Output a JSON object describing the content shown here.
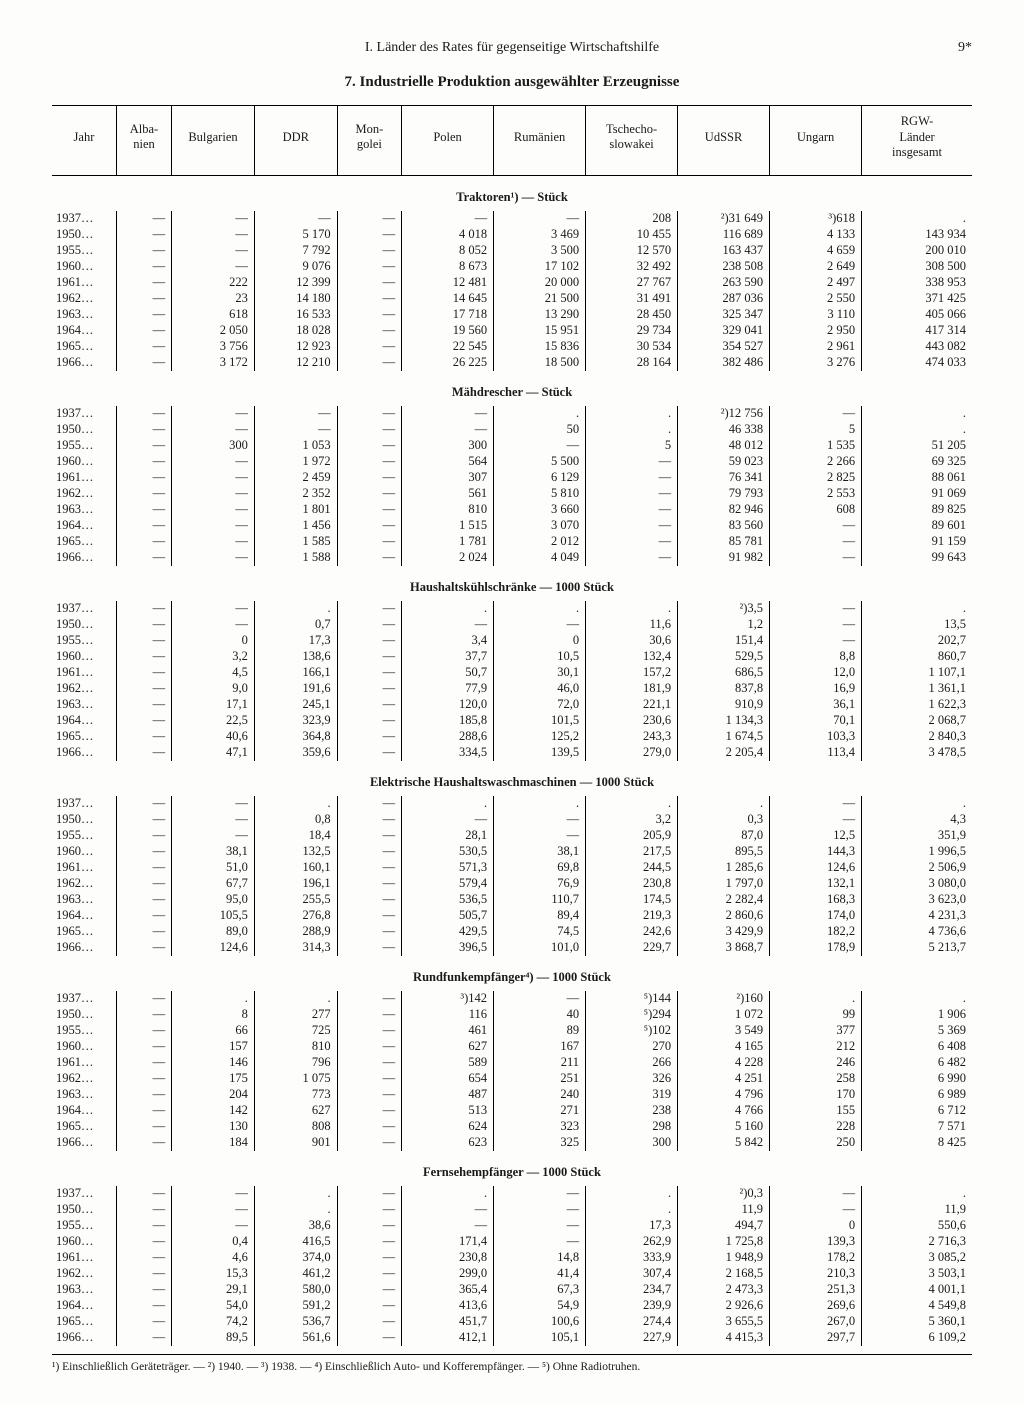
{
  "chapter": "I. Länder des Rates für gegenseitige Wirtschaftshilfe",
  "page_number": "9*",
  "title": "7. Industrielle Produktion ausgewählter Erzeugnisse",
  "columns": [
    "Jahr",
    "Alba-\nnien",
    "Bulgarien",
    "DDR",
    "Mon-\ngolei",
    "Polen",
    "Rumänien",
    "Tschecho-\nslowakei",
    "UdSSR",
    "Ungarn",
    "RGW-\nLänder\ninsgesamt"
  ],
  "years": [
    "1937…",
    "1950…",
    "1955…",
    "1960…",
    "1961…",
    "1962…",
    "1963…",
    "1964…",
    "1965…",
    "1966…"
  ],
  "sections": [
    {
      "title": "Traktoren¹) — Stück",
      "rows": [
        [
          "—",
          "—",
          "—",
          "—",
          "—",
          "—",
          "208",
          "²)31 649",
          "³)618",
          "."
        ],
        [
          "—",
          "—",
          "5 170",
          "—",
          "4 018",
          "3 469",
          "10 455",
          "116 689",
          "4 133",
          "143 934"
        ],
        [
          "—",
          "—",
          "7 792",
          "—",
          "8 052",
          "3 500",
          "12 570",
          "163 437",
          "4 659",
          "200 010"
        ],
        [
          "—",
          "—",
          "9 076",
          "—",
          "8 673",
          "17 102",
          "32 492",
          "238 508",
          "2 649",
          "308 500"
        ],
        [
          "—",
          "222",
          "12 399",
          "—",
          "12 481",
          "20 000",
          "27 767",
          "263 590",
          "2 497",
          "338 953"
        ],
        [
          "—",
          "23",
          "14 180",
          "—",
          "14 645",
          "21 500",
          "31 491",
          "287 036",
          "2 550",
          "371 425"
        ],
        [
          "—",
          "618",
          "16 533",
          "—",
          "17 718",
          "13 290",
          "28 450",
          "325 347",
          "3 110",
          "405 066"
        ],
        [
          "—",
          "2 050",
          "18 028",
          "—",
          "19 560",
          "15 951",
          "29 734",
          "329 041",
          "2 950",
          "417 314"
        ],
        [
          "—",
          "3 756",
          "12 923",
          "—",
          "22 545",
          "15 836",
          "30 534",
          "354 527",
          "2 961",
          "443 082"
        ],
        [
          "—",
          "3 172",
          "12 210",
          "—",
          "26 225",
          "18 500",
          "28 164",
          "382 486",
          "3 276",
          "474 033"
        ]
      ]
    },
    {
      "title": "Mähdrescher — Stück",
      "rows": [
        [
          "—",
          "—",
          "—",
          "—",
          "—",
          ".",
          ".",
          "²)12 756",
          "—",
          "."
        ],
        [
          "—",
          "—",
          "—",
          "—",
          "—",
          "50",
          ".",
          "46 338",
          "5",
          "."
        ],
        [
          "—",
          "300",
          "1 053",
          "—",
          "300",
          "—",
          "5",
          "48 012",
          "1 535",
          "51 205"
        ],
        [
          "—",
          "—",
          "1 972",
          "—",
          "564",
          "5 500",
          "—",
          "59 023",
          "2 266",
          "69 325"
        ],
        [
          "—",
          "—",
          "2 459",
          "—",
          "307",
          "6 129",
          "—",
          "76 341",
          "2 825",
          "88 061"
        ],
        [
          "—",
          "—",
          "2 352",
          "—",
          "561",
          "5 810",
          "—",
          "79 793",
          "2 553",
          "91 069"
        ],
        [
          "—",
          "—",
          "1 801",
          "—",
          "810",
          "3 660",
          "—",
          "82 946",
          "608",
          "89 825"
        ],
        [
          "—",
          "—",
          "1 456",
          "—",
          "1 515",
          "3 070",
          "—",
          "83 560",
          "—",
          "89 601"
        ],
        [
          "—",
          "—",
          "1 585",
          "—",
          "1 781",
          "2 012",
          "—",
          "85 781",
          "—",
          "91 159"
        ],
        [
          "—",
          "—",
          "1 588",
          "—",
          "2 024",
          "4 049",
          "—",
          "91 982",
          "—",
          "99 643"
        ]
      ]
    },
    {
      "title": "Haushaltskühlschränke — 1000 Stück",
      "rows": [
        [
          "—",
          "—",
          ".",
          "—",
          ".",
          ".",
          ".",
          "²)3,5",
          "—",
          "."
        ],
        [
          "—",
          "—",
          "0,7",
          "—",
          "—",
          "—",
          "11,6",
          "1,2",
          "—",
          "13,5"
        ],
        [
          "—",
          "0",
          "17,3",
          "—",
          "3,4",
          "0",
          "30,6",
          "151,4",
          "—",
          "202,7"
        ],
        [
          "—",
          "3,2",
          "138,6",
          "—",
          "37,7",
          "10,5",
          "132,4",
          "529,5",
          "8,8",
          "860,7"
        ],
        [
          "—",
          "4,5",
          "166,1",
          "—",
          "50,7",
          "30,1",
          "157,2",
          "686,5",
          "12,0",
          "1 107,1"
        ],
        [
          "—",
          "9,0",
          "191,6",
          "—",
          "77,9",
          "46,0",
          "181,9",
          "837,8",
          "16,9",
          "1 361,1"
        ],
        [
          "—",
          "17,1",
          "245,1",
          "—",
          "120,0",
          "72,0",
          "221,1",
          "910,9",
          "36,1",
          "1 622,3"
        ],
        [
          "—",
          "22,5",
          "323,9",
          "—",
          "185,8",
          "101,5",
          "230,6",
          "1 134,3",
          "70,1",
          "2 068,7"
        ],
        [
          "—",
          "40,6",
          "364,8",
          "—",
          "288,6",
          "125,2",
          "243,3",
          "1 674,5",
          "103,3",
          "2 840,3"
        ],
        [
          "—",
          "47,1",
          "359,6",
          "—",
          "334,5",
          "139,5",
          "279,0",
          "2 205,4",
          "113,4",
          "3 478,5"
        ]
      ]
    },
    {
      "title": "Elektrische Haushaltswaschmaschinen — 1000 Stück",
      "rows": [
        [
          "—",
          "—",
          ".",
          "—",
          ".",
          ".",
          ".",
          ".",
          "—",
          "."
        ],
        [
          "—",
          "—",
          "0,8",
          "—",
          "—",
          "—",
          "3,2",
          "0,3",
          "—",
          "4,3"
        ],
        [
          "—",
          "—",
          "18,4",
          "—",
          "28,1",
          "—",
          "205,9",
          "87,0",
          "12,5",
          "351,9"
        ],
        [
          "—",
          "38,1",
          "132,5",
          "—",
          "530,5",
          "38,1",
          "217,5",
          "895,5",
          "144,3",
          "1 996,5"
        ],
        [
          "—",
          "51,0",
          "160,1",
          "—",
          "571,3",
          "69,8",
          "244,5",
          "1 285,6",
          "124,6",
          "2 506,9"
        ],
        [
          "—",
          "67,7",
          "196,1",
          "—",
          "579,4",
          "76,9",
          "230,8",
          "1 797,0",
          "132,1",
          "3 080,0"
        ],
        [
          "—",
          "95,0",
          "255,5",
          "—",
          "536,5",
          "110,7",
          "174,5",
          "2 282,4",
          "168,3",
          "3 623,0"
        ],
        [
          "—",
          "105,5",
          "276,8",
          "—",
          "505,7",
          "89,4",
          "219,3",
          "2 860,6",
          "174,0",
          "4 231,3"
        ],
        [
          "—",
          "89,0",
          "288,9",
          "—",
          "429,5",
          "74,5",
          "242,6",
          "3 429,9",
          "182,2",
          "4 736,6"
        ],
        [
          "—",
          "124,6",
          "314,3",
          "—",
          "396,5",
          "101,0",
          "229,7",
          "3 868,7",
          "178,9",
          "5 213,7"
        ]
      ]
    },
    {
      "title": "Rundfunkempfänger⁴) — 1000 Stück",
      "rows": [
        [
          "—",
          ".",
          ".",
          "—",
          "³)142",
          "—",
          "⁵)144",
          "²)160",
          ".",
          "."
        ],
        [
          "—",
          "8",
          "277",
          "—",
          "116",
          "40",
          "⁵)294",
          "1 072",
          "99",
          "1 906"
        ],
        [
          "—",
          "66",
          "725",
          "—",
          "461",
          "89",
          "⁵)102",
          "3 549",
          "377",
          "5 369"
        ],
        [
          "—",
          "157",
          "810",
          "—",
          "627",
          "167",
          "270",
          "4 165",
          "212",
          "6 408"
        ],
        [
          "—",
          "146",
          "796",
          "—",
          "589",
          "211",
          "266",
          "4 228",
          "246",
          "6 482"
        ],
        [
          "—",
          "175",
          "1 075",
          "—",
          "654",
          "251",
          "326",
          "4 251",
          "258",
          "6 990"
        ],
        [
          "—",
          "204",
          "773",
          "—",
          "487",
          "240",
          "319",
          "4 796",
          "170",
          "6 989"
        ],
        [
          "—",
          "142",
          "627",
          "—",
          "513",
          "271",
          "238",
          "4 766",
          "155",
          "6 712"
        ],
        [
          "—",
          "130",
          "808",
          "—",
          "624",
          "323",
          "298",
          "5 160",
          "228",
          "7 571"
        ],
        [
          "—",
          "184",
          "901",
          "—",
          "623",
          "325",
          "300",
          "5 842",
          "250",
          "8 425"
        ]
      ]
    },
    {
      "title": "Fernsehempfänger — 1000 Stück",
      "rows": [
        [
          "—",
          "—",
          ".",
          "—",
          ".",
          "—",
          ".",
          "²)0,3",
          "—",
          "."
        ],
        [
          "—",
          "—",
          ".",
          "—",
          "—",
          "—",
          ".",
          "11,9",
          "—",
          "11,9"
        ],
        [
          "—",
          "—",
          "38,6",
          "—",
          "—",
          "—",
          "17,3",
          "494,7",
          "0",
          "550,6"
        ],
        [
          "—",
          "0,4",
          "416,5",
          "—",
          "171,4",
          "—",
          "262,9",
          "1 725,8",
          "139,3",
          "2 716,3"
        ],
        [
          "—",
          "4,6",
          "374,0",
          "—",
          "230,8",
          "14,8",
          "333,9",
          "1 948,9",
          "178,2",
          "3 085,2"
        ],
        [
          "—",
          "15,3",
          "461,2",
          "—",
          "299,0",
          "41,4",
          "307,4",
          "2 168,5",
          "210,3",
          "3 503,1"
        ],
        [
          "—",
          "29,1",
          "580,0",
          "—",
          "365,4",
          "67,3",
          "234,7",
          "2 473,3",
          "251,3",
          "4 001,1"
        ],
        [
          "—",
          "54,0",
          "591,2",
          "—",
          "413,6",
          "54,9",
          "239,9",
          "2 926,6",
          "269,6",
          "4 549,8"
        ],
        [
          "—",
          "74,2",
          "536,7",
          "—",
          "451,7",
          "100,6",
          "274,4",
          "3 655,5",
          "267,0",
          "5 360,1"
        ],
        [
          "—",
          "89,5",
          "561,6",
          "—",
          "412,1",
          "105,1",
          "227,9",
          "4 415,3",
          "297,7",
          "6 109,2"
        ]
      ]
    }
  ],
  "footnotes": "¹) Einschließlich Geräteträger. — ²) 1940. — ³) 1938. — ⁴) Einschließlich Auto- und Kofferempfänger. — ⁵) Ohne Radiotruhen."
}
